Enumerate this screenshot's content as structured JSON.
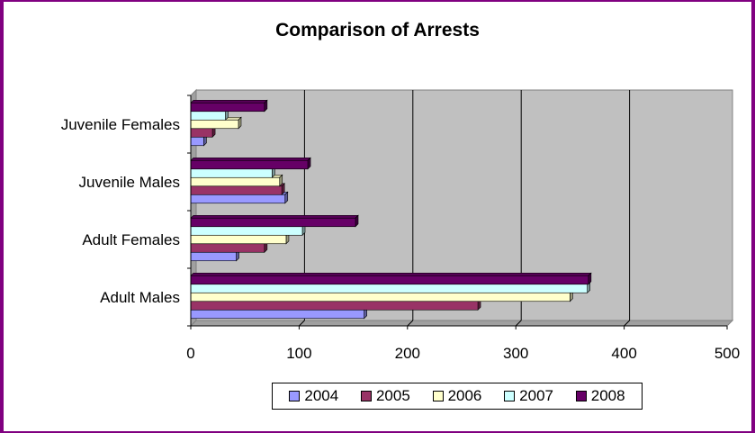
{
  "chart_data": {
    "type": "bar",
    "orientation": "horizontal",
    "title": "Comparison of Arrests",
    "categories": [
      "Adult Males",
      "Adult Females",
      "Juvenile Males",
      "Juvenile Females"
    ],
    "series": [
      {
        "name": "2004",
        "color": "#9999FF",
        "values": [
          160,
          42,
          87,
          12
        ]
      },
      {
        "name": "2005",
        "color": "#993366",
        "values": [
          265,
          68,
          84,
          20
        ]
      },
      {
        "name": "2006",
        "color": "#FFFFCC",
        "values": [
          350,
          88,
          82,
          44
        ]
      },
      {
        "name": "2007",
        "color": "#CCFFFF",
        "values": [
          366,
          103,
          75,
          32
        ]
      },
      {
        "name": "2008",
        "color": "#660066",
        "values": [
          367,
          152,
          108,
          68
        ]
      }
    ],
    "xlim": [
      0,
      500
    ],
    "xticks": [
      "0",
      "100",
      "200",
      "300",
      "400",
      "500"
    ],
    "grid": true,
    "plot_background": "#C0C0C0",
    "legend_position": "bottom"
  }
}
